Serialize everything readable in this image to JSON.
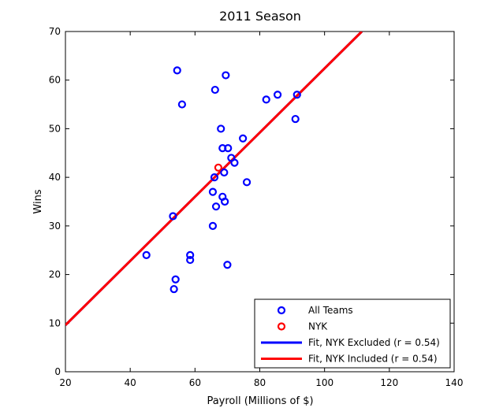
{
  "chart_data": {
    "type": "scatter",
    "title": "2011 Season",
    "xlabel": "Payroll (Millions of $)",
    "ylabel": "Wins",
    "xlim": [
      20,
      140
    ],
    "ylim": [
      0,
      70
    ],
    "xticks": [
      20,
      40,
      60,
      80,
      100,
      120,
      140
    ],
    "yticks": [
      0,
      10,
      20,
      30,
      40,
      50,
      60,
      70
    ],
    "grid": false,
    "legend_position": "bottom-right",
    "series": [
      {
        "name": "All Teams",
        "kind": "scatter",
        "color": "#0000ff",
        "points": [
          [
            45,
            24
          ],
          [
            53.2,
            32
          ],
          [
            53.5,
            17
          ],
          [
            54,
            19
          ],
          [
            54.5,
            62
          ],
          [
            56,
            55
          ],
          [
            58.5,
            24
          ],
          [
            58.5,
            23
          ],
          [
            65.5,
            37
          ],
          [
            65.5,
            30
          ],
          [
            66,
            40
          ],
          [
            66.2,
            58
          ],
          [
            66.5,
            34
          ],
          [
            68,
            50
          ],
          [
            68.5,
            46
          ],
          [
            68.5,
            36
          ],
          [
            69,
            41
          ],
          [
            69.2,
            35
          ],
          [
            69.5,
            61
          ],
          [
            70,
            22
          ],
          [
            70.2,
            46
          ],
          [
            71.2,
            44
          ],
          [
            72.2,
            43
          ],
          [
            74.8,
            48
          ],
          [
            76,
            39
          ],
          [
            82,
            56
          ],
          [
            85.5,
            57
          ],
          [
            91,
            52
          ],
          [
            91.5,
            57
          ]
        ]
      },
      {
        "name": "NYK",
        "kind": "scatter",
        "color": "#ff0000",
        "points": [
          [
            67.2,
            42
          ]
        ]
      },
      {
        "name": "Fit, NYK Excluded (r = 0.54)",
        "kind": "line",
        "color": "#0000ff",
        "points": [
          [
            20,
            9.6
          ],
          [
            111.5,
            70
          ]
        ]
      },
      {
        "name": "Fit, NYK Included (r = 0.54)",
        "kind": "line",
        "color": "#ff0000",
        "points": [
          [
            20,
            9.6
          ],
          [
            111.5,
            70
          ]
        ]
      }
    ]
  }
}
